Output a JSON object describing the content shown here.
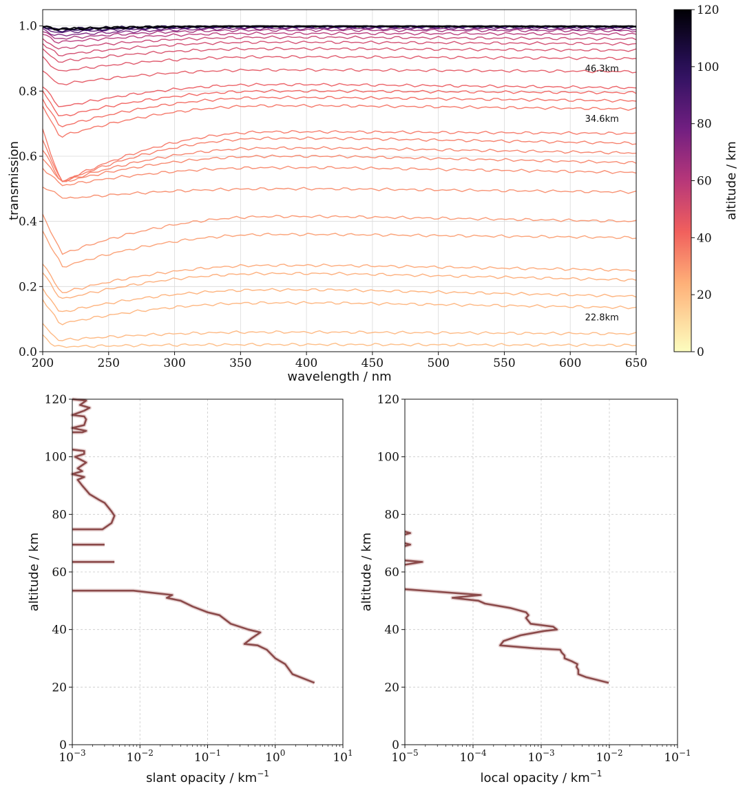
{
  "chart_data": [
    {
      "type": "line",
      "xlabel": "wavelength / nm",
      "ylabel": "transmission",
      "xlim": [
        200,
        650
      ],
      "ylim": [
        0.0,
        1.05
      ],
      "x_ticks": [
        "200",
        "250",
        "300",
        "350",
        "400",
        "450",
        "500",
        "550",
        "600",
        "650"
      ],
      "y_ticks": [
        "0.0",
        "0.2",
        "0.4",
        "0.6",
        "0.8",
        "1.0"
      ],
      "grid": true,
      "colorbar": {
        "label": "altitude / km",
        "range": [
          0,
          120
        ],
        "ticks": [
          "0",
          "20",
          "40",
          "60",
          "80",
          "100",
          "120"
        ],
        "colormap": "magma_r"
      },
      "annotations": [
        {
          "text": "46.3km",
          "x": 624,
          "y": 0.86
        },
        {
          "text": "34.6km",
          "x": 624,
          "y": 0.706
        },
        {
          "text": "22.8km",
          "x": 624,
          "y": 0.096
        }
      ],
      "series": [
        {
          "altitude_km": 21,
          "base": 0.02,
          "dip": 0.015,
          "peak": 0.022,
          "min_x": 210
        },
        {
          "altitude_km": 22,
          "base": 0.055,
          "dip": 0.035,
          "peak": 0.06,
          "min_x": 212
        },
        {
          "altitude_km": 23,
          "base": 0.135,
          "dip": 0.085,
          "peak": 0.15,
          "min_x": 213
        },
        {
          "altitude_km": 24,
          "base": 0.17,
          "dip": 0.12,
          "peak": 0.19,
          "min_x": 213
        },
        {
          "altitude_km": 25,
          "base": 0.22,
          "dip": 0.16,
          "peak": 0.24,
          "min_x": 214
        },
        {
          "altitude_km": 26,
          "base": 0.25,
          "dip": 0.18,
          "peak": 0.265,
          "min_x": 214
        },
        {
          "altitude_km": 28,
          "base": 0.35,
          "dip": 0.26,
          "peak": 0.36,
          "min_x": 215
        },
        {
          "altitude_km": 30,
          "base": 0.4,
          "dip": 0.3,
          "peak": 0.415,
          "min_x": 215
        },
        {
          "altitude_km": 32,
          "base": 0.49,
          "dip": 0.47,
          "peak": 0.5,
          "min_x": 218
        },
        {
          "altitude_km": 33,
          "base": 0.55,
          "dip": 0.51,
          "peak": 0.565,
          "min_x": 215
        },
        {
          "altitude_km": 34,
          "base": 0.58,
          "dip": 0.52,
          "peak": 0.6,
          "min_x": 215
        },
        {
          "altitude_km": 35,
          "base": 0.61,
          "dip": 0.52,
          "peak": 0.625,
          "min_x": 214
        },
        {
          "altitude_km": 36,
          "base": 0.64,
          "dip": 0.52,
          "peak": 0.655,
          "min_x": 214
        },
        {
          "altitude_km": 37,
          "base": 0.67,
          "dip": 0.52,
          "peak": 0.675,
          "min_x": 214
        },
        {
          "altitude_km": 38,
          "base": 0.745,
          "dip": 0.66,
          "peak": 0.755,
          "min_x": 213
        },
        {
          "altitude_km": 40,
          "base": 0.77,
          "dip": 0.69,
          "peak": 0.78,
          "min_x": 213
        },
        {
          "altitude_km": 42,
          "base": 0.795,
          "dip": 0.72,
          "peak": 0.8,
          "min_x": 213
        },
        {
          "altitude_km": 44,
          "base": 0.81,
          "dip": 0.75,
          "peak": 0.82,
          "min_x": 213
        },
        {
          "altitude_km": 46,
          "base": 0.86,
          "dip": 0.82,
          "peak": 0.865,
          "min_x": 212
        },
        {
          "altitude_km": 48,
          "base": 0.9,
          "dip": 0.86,
          "peak": 0.905,
          "min_x": 212
        },
        {
          "altitude_km": 50,
          "base": 0.925,
          "dip": 0.89,
          "peak": 0.93,
          "min_x": 212
        },
        {
          "altitude_km": 52,
          "base": 0.945,
          "dip": 0.91,
          "peak": 0.95,
          "min_x": 212
        },
        {
          "altitude_km": 55,
          "base": 0.96,
          "dip": 0.93,
          "peak": 0.965,
          "min_x": 211
        },
        {
          "altitude_km": 60,
          "base": 0.975,
          "dip": 0.95,
          "peak": 0.977,
          "min_x": 211
        },
        {
          "altitude_km": 65,
          "base": 0.985,
          "dip": 0.96,
          "peak": 0.987,
          "min_x": 210
        },
        {
          "altitude_km": 75,
          "base": 0.99,
          "dip": 0.97,
          "peak": 0.992,
          "min_x": 210
        },
        {
          "altitude_km": 85,
          "base": 0.995,
          "dip": 0.98,
          "peak": 0.996,
          "min_x": 210
        },
        {
          "altitude_km": 95,
          "base": 0.997,
          "dip": 0.985,
          "peak": 0.998,
          "min_x": 210
        },
        {
          "altitude_km": 105,
          "base": 0.998,
          "dip": 0.99,
          "peak": 0.999,
          "min_x": 210
        },
        {
          "altitude_km": 115,
          "base": 0.999,
          "dip": 0.99,
          "peak": 1.0,
          "min_x": 210
        },
        {
          "altitude_km": 120,
          "base": 1.0,
          "dip": 0.99,
          "peak": 1.0,
          "min_x": 210
        }
      ]
    },
    {
      "type": "line",
      "xlabel": "slant opacity / km",
      "xlabel_sup": "−1",
      "ylabel": "altitude / km",
      "xscale": "log",
      "xlim": [
        0.001,
        10
      ],
      "ylim": [
        0,
        120
      ],
      "x_ticks": [
        {
          "base": "10",
          "exp": "−3"
        },
        {
          "base": "10",
          "exp": "−2"
        },
        {
          "base": "10",
          "exp": "−1"
        },
        {
          "base": "10",
          "exp": "0"
        },
        {
          "base": "10",
          "exp": "1"
        }
      ],
      "y_ticks": [
        "0",
        "20",
        "40",
        "60",
        "80",
        "100",
        "120"
      ],
      "grid": true,
      "series": [
        {
          "segments": [
            [
              [
                3.8,
                21.5
              ],
              [
                1.8,
                24.5
              ],
              [
                1.4,
                28
              ],
              [
                1.0,
                30
              ],
              [
                0.75,
                33
              ],
              [
                0.55,
                34.5
              ],
              [
                0.35,
                35
              ],
              [
                0.45,
                37
              ],
              [
                0.6,
                39
              ],
              [
                0.4,
                40
              ],
              [
                0.22,
                42
              ],
              [
                0.15,
                45
              ],
              [
                0.1,
                46
              ],
              [
                0.06,
                48
              ],
              [
                0.04,
                50
              ],
              [
                0.025,
                51
              ],
              [
                0.03,
                52
              ],
              [
                0.008,
                53.5
              ],
              [
                0.001,
                53.5
              ]
            ],
            [
              [
                0.001,
                63.5
              ],
              [
                0.0042,
                63.5
              ]
            ],
            [
              [
                0.001,
                69.5
              ],
              [
                0.003,
                69.5
              ]
            ],
            [
              [
                0.001,
                74.8
              ],
              [
                0.0028,
                74.8
              ],
              [
                0.0038,
                77
              ],
              [
                0.0042,
                79.5
              ],
              [
                0.0038,
                81
              ],
              [
                0.003,
                84
              ],
              [
                0.0025,
                85
              ],
              [
                0.0018,
                87
              ],
              [
                0.0014,
                90
              ],
              [
                0.0012,
                92
              ],
              [
                0.0015,
                93
              ],
              [
                0.001,
                94
              ],
              [
                0.0014,
                95
              ],
              [
                0.0012,
                96
              ],
              [
                0.0016,
                98
              ],
              [
                0.0011,
                100
              ],
              [
                0.0015,
                101
              ],
              [
                0.0015,
                102
              ],
              [
                0.001,
                102.5
              ]
            ],
            [
              [
                0.001,
                108.5
              ],
              [
                0.0014,
                108.5
              ],
              [
                0.0016,
                109
              ],
              [
                0.001,
                110
              ],
              [
                0.0015,
                111
              ],
              [
                0.0016,
                113
              ],
              [
                0.0015,
                114
              ],
              [
                0.001,
                114.5
              ],
              [
                0.0015,
                116
              ],
              [
                0.0018,
                117
              ],
              [
                0.0013,
                118
              ],
              [
                0.0016,
                119.5
              ],
              [
                0.001,
                120
              ]
            ]
          ]
        }
      ]
    },
    {
      "type": "line",
      "xlabel": "local opacity / km",
      "xlabel_sup": "−1",
      "ylabel": "altitude / km",
      "xscale": "log",
      "xlim": [
        1e-05,
        0.1
      ],
      "ylim": [
        0,
        120
      ],
      "x_ticks": [
        {
          "base": "10",
          "exp": "−5"
        },
        {
          "base": "10",
          "exp": "−4"
        },
        {
          "base": "10",
          "exp": "−3"
        },
        {
          "base": "10",
          "exp": "−2"
        },
        {
          "base": "10",
          "exp": "−1"
        }
      ],
      "y_ticks": [
        "0",
        "20",
        "40",
        "60",
        "80",
        "100",
        "120"
      ],
      "grid": true,
      "series": [
        {
          "segments": [
            [
              [
                0.0098,
                21.5
              ],
              [
                0.0045,
                23.5
              ],
              [
                0.0035,
                24.5
              ],
              [
                0.0035,
                26
              ],
              [
                0.0033,
                27
              ],
              [
                0.0034,
                28
              ],
              [
                0.0028,
                29
              ],
              [
                0.0022,
                30
              ],
              [
                0.0022,
                31
              ],
              [
                0.002,
                32
              ],
              [
                0.0019,
                33
              ],
              [
                0.0008,
                33.5
              ],
              [
                0.00025,
                34.5
              ],
              [
                0.00028,
                36
              ],
              [
                0.0005,
                38
              ],
              [
                0.0011,
                39.5
              ],
              [
                0.0017,
                40
              ],
              [
                0.0015,
                41
              ],
              [
                0.0007,
                42
              ],
              [
                0.0006,
                44
              ],
              [
                0.00065,
                45
              ],
              [
                0.0006,
                46
              ],
              [
                0.00035,
                47.5
              ],
              [
                0.00015,
                49
              ],
              [
                0.00012,
                50
              ],
              [
                5e-05,
                51
              ],
              [
                0.00013,
                52
              ],
              [
                1e-05,
                54
              ]
            ],
            [
              [
                1e-05,
                62.5
              ],
              [
                1.8e-05,
                63.5
              ],
              [
                1e-05,
                64
              ]
            ],
            [
              [
                1e-05,
                69
              ],
              [
                1.2e-05,
                69.5
              ],
              [
                1e-05,
                70
              ]
            ],
            [
              [
                1e-05,
                73
              ],
              [
                1.2e-05,
                73.5
              ],
              [
                1e-05,
                74
              ]
            ]
          ]
        }
      ]
    }
  ]
}
